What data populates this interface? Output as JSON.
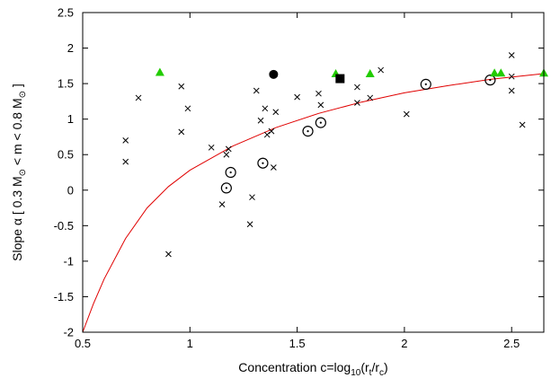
{
  "chart_data": {
    "type": "scatter",
    "xlabel": {
      "main": "Concentration c=log",
      "sub1": "10",
      "mid": "(r",
      "sub2": "t",
      "slash": "/r",
      "sub3": "c",
      "end": ")"
    },
    "ylabel": {
      "p1": "Slope α [ 0.3 M",
      "s1": "⊙",
      "p2": " < m < 0.8 M",
      "s2": "⊙",
      "p3": " ]"
    },
    "xlim": [
      0.5,
      2.65
    ],
    "ylim": [
      -2,
      2.5
    ],
    "x_ticks": [
      0.5,
      1,
      1.5,
      2,
      2.5
    ],
    "x_tick_labels": [
      "0.5",
      "1",
      "1.5",
      "2",
      "2.5"
    ],
    "y_ticks": [
      -2,
      -1.5,
      -1,
      -0.5,
      0,
      0.5,
      1,
      1.5,
      2,
      2.5
    ],
    "y_tick_labels": [
      "-2",
      "-1.5",
      "-1",
      "-0.5",
      "0",
      "0.5",
      "1",
      "1.5",
      "2",
      "2.5"
    ],
    "grid": false,
    "colors": {
      "curve": "#e00000",
      "triangle": "#22cc00",
      "marker": "#000000"
    },
    "series": [
      {
        "marker": "cross",
        "points": [
          [
            0.7,
            0.7
          ],
          [
            0.7,
            0.4
          ],
          [
            0.76,
            1.3
          ],
          [
            0.9,
            -0.9
          ],
          [
            0.96,
            1.46
          ],
          [
            0.96,
            0.82
          ],
          [
            0.99,
            1.15
          ],
          [
            1.1,
            0.6
          ],
          [
            1.15,
            -0.2
          ],
          [
            1.17,
            0.5
          ],
          [
            1.18,
            0.58
          ],
          [
            1.28,
            -0.48
          ],
          [
            1.29,
            -0.1
          ],
          [
            1.31,
            1.4
          ],
          [
            1.33,
            0.98
          ],
          [
            1.35,
            1.15
          ],
          [
            1.36,
            0.78
          ],
          [
            1.38,
            0.83
          ],
          [
            1.39,
            0.32
          ],
          [
            1.4,
            1.1
          ],
          [
            1.5,
            1.31
          ],
          [
            1.6,
            1.36
          ],
          [
            1.61,
            1.2
          ],
          [
            1.78,
            1.45
          ],
          [
            1.78,
            1.23
          ],
          [
            1.84,
            1.3
          ],
          [
            1.89,
            1.69
          ],
          [
            2.01,
            1.07
          ],
          [
            2.5,
            1.9
          ],
          [
            2.5,
            1.6
          ],
          [
            2.5,
            1.4
          ],
          [
            2.55,
            0.92
          ]
        ]
      },
      {
        "marker": "circle-dot",
        "points": [
          [
            1.17,
            0.03
          ],
          [
            1.19,
            0.25
          ],
          [
            1.34,
            0.38
          ],
          [
            1.55,
            0.83
          ],
          [
            1.61,
            0.95
          ],
          [
            2.1,
            1.49
          ],
          [
            2.4,
            1.55
          ]
        ]
      },
      {
        "marker": "triangle",
        "points": [
          [
            0.86,
            1.66
          ],
          [
            1.68,
            1.64
          ],
          [
            1.84,
            1.64
          ],
          [
            2.42,
            1.65
          ],
          [
            2.45,
            1.65
          ],
          [
            2.65,
            1.65
          ]
        ]
      },
      {
        "marker": "filled-circle",
        "points": [
          [
            1.39,
            1.63
          ]
        ]
      },
      {
        "marker": "filled-square",
        "points": [
          [
            1.7,
            1.57
          ]
        ]
      },
      {
        "marker": "curve",
        "type": "line",
        "points": [
          [
            0.5,
            -2.0
          ],
          [
            0.55,
            -1.6
          ],
          [
            0.6,
            -1.25
          ],
          [
            0.7,
            -0.68
          ],
          [
            0.8,
            -0.25
          ],
          [
            0.9,
            0.05
          ],
          [
            1.0,
            0.28
          ],
          [
            1.2,
            0.62
          ],
          [
            1.4,
            0.88
          ],
          [
            1.6,
            1.08
          ],
          [
            1.8,
            1.24
          ],
          [
            2.0,
            1.37
          ],
          [
            2.2,
            1.47
          ],
          [
            2.4,
            1.56
          ],
          [
            2.65,
            1.64
          ]
        ]
      }
    ]
  }
}
